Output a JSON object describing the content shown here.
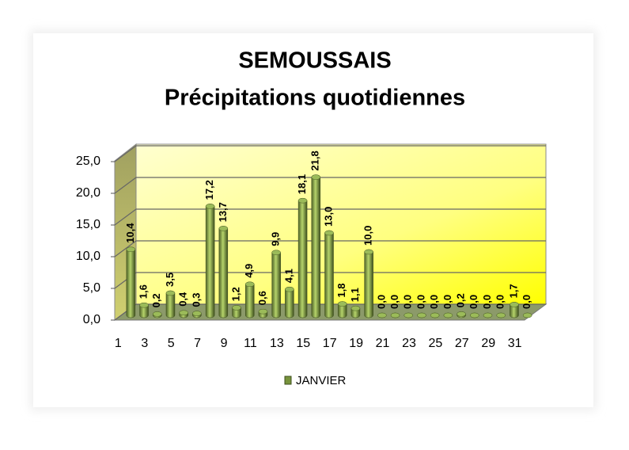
{
  "chart_data": {
    "type": "bar3d",
    "title": "SEMOUSSAIS",
    "subtitle": "Précipitations quotidiennes",
    "categories": [
      1,
      null,
      3,
      null,
      5,
      null,
      7,
      null,
      9,
      null,
      11,
      null,
      13,
      null,
      15,
      null,
      17,
      null,
      19,
      null,
      21,
      null,
      23,
      null,
      25,
      null,
      27,
      null,
      29,
      null,
      31
    ],
    "series": [
      {
        "name": "JANVIER",
        "color": "#77933c",
        "values": [
          10.4,
          1.6,
          0.2,
          3.5,
          0.4,
          0.3,
          17.2,
          13.7,
          1.2,
          4.9,
          0.6,
          9.9,
          4.1,
          18.1,
          21.8,
          13.0,
          1.8,
          1.1,
          10.0,
          0.0,
          0.0,
          0.0,
          0.0,
          0.0,
          0.0,
          0.2,
          0.0,
          0.0,
          0.0,
          1.7,
          0.0
        ],
        "value_labels": [
          "10,4",
          "1,6",
          "0,2",
          "3,5",
          "0,4",
          "0,3",
          "17,2",
          "13,7",
          "1,2",
          "4,9",
          "0,6",
          "9,9",
          "4,1",
          "18,1",
          "21,8",
          "13,0",
          "1,8",
          "1,1",
          "10,0",
          "0,0",
          "0,0",
          "0,0",
          "0,0",
          "0,0",
          "0,0",
          "0,2",
          "0,0",
          "0,0",
          "0,0",
          "1,7",
          "0,0"
        ]
      }
    ],
    "ylim": [
      0,
      25
    ],
    "yticks": [
      {
        "value": 0,
        "label": "0,0"
      },
      {
        "value": 5,
        "label": "5,0"
      },
      {
        "value": 10,
        "label": "10,0"
      },
      {
        "value": 15,
        "label": "15,0"
      },
      {
        "value": 20,
        "label": "20,0"
      },
      {
        "value": 25,
        "label": "25,0"
      }
    ],
    "grid": true
  }
}
